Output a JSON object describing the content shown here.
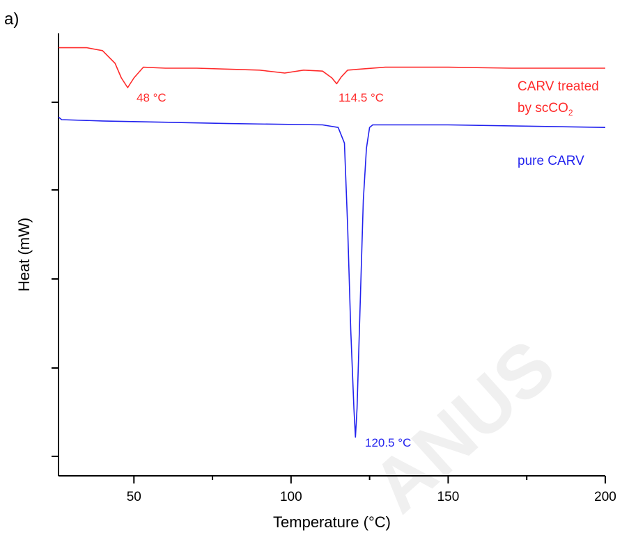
{
  "panel_label": "a)",
  "watermark": "ANUS",
  "chart_data": {
    "type": "line",
    "xlabel": "Temperature (°C)",
    "ylabel": "Heat (mW)",
    "xlim": [
      26,
      200
    ],
    "x_ticks": [
      50,
      100,
      150,
      200
    ],
    "y_tick_labels_shown": false,
    "grid": false,
    "colors": {
      "treated": "#ff2a2a",
      "pure": "#2222ee"
    },
    "series": [
      {
        "label_line1": "CARV treated",
        "label_line2_prefix": "by scCO",
        "label_line2_subscript": "2",
        "points": [
          [
            26,
            0.42
          ],
          [
            35,
            0.42
          ],
          [
            40,
            0.36
          ],
          [
            44,
            0.1
          ],
          [
            46,
            -0.2
          ],
          [
            48,
            -0.4
          ],
          [
            50,
            -0.2
          ],
          [
            53,
            0.02
          ],
          [
            60,
            0.0
          ],
          [
            70,
            0.0
          ],
          [
            80,
            -0.02
          ],
          [
            90,
            -0.04
          ],
          [
            98,
            -0.1
          ],
          [
            104,
            -0.04
          ],
          [
            110,
            -0.06
          ],
          [
            113,
            -0.2
          ],
          [
            114.5,
            -0.32
          ],
          [
            116,
            -0.18
          ],
          [
            118,
            -0.04
          ],
          [
            130,
            0.02
          ],
          [
            150,
            0.02
          ],
          [
            170,
            0.0
          ],
          [
            200,
            0.0
          ]
        ],
        "peaks": [
          {
            "x": 48,
            "label": "48 °C"
          },
          {
            "x": 114.5,
            "label": "114.5 °C"
          }
        ]
      },
      {
        "label": "pure CARV",
        "points": [
          [
            26,
            -5.8
          ],
          [
            27,
            -5.9
          ],
          [
            40,
            -5.95
          ],
          [
            80,
            -6.05
          ],
          [
            110,
            -6.1
          ],
          [
            115,
            -6.2
          ],
          [
            117,
            -6.8
          ],
          [
            118,
            -10
          ],
          [
            119,
            -14
          ],
          [
            120,
            -17
          ],
          [
            120.5,
            -18.1
          ],
          [
            121,
            -17
          ],
          [
            122,
            -13
          ],
          [
            123,
            -9
          ],
          [
            124,
            -7
          ],
          [
            125,
            -6.2
          ],
          [
            126,
            -6.1
          ],
          [
            150,
            -6.1
          ],
          [
            200,
            -6.2
          ]
        ],
        "peaks": [
          {
            "x": 120.5,
            "label": "120.5 °C"
          }
        ]
      }
    ]
  }
}
